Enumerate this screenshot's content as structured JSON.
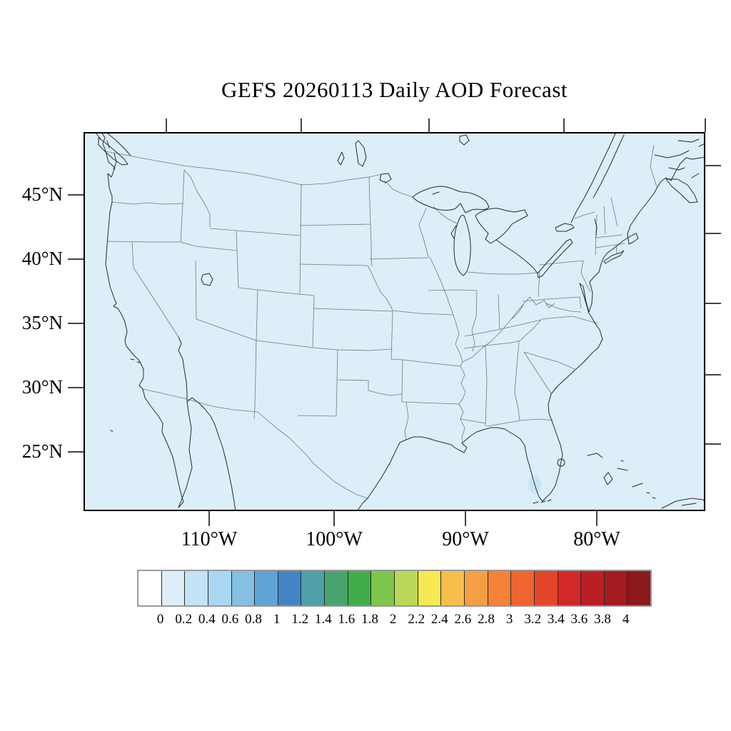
{
  "title": "GEFS 20260113 Daily AOD Forecast",
  "map": {
    "fill": "#DCEEF8",
    "aod_patch_fill": "#C7E5F5",
    "coast_color": "#2b2b2b",
    "state_border_color": "#6b7b7d",
    "frame_color": "#000000",
    "tick_color": "#444444"
  },
  "axes": {
    "lat": {
      "labels": [
        "45°N",
        "40°N",
        "35°N",
        "30°N",
        "25°N"
      ]
    },
    "lon": {
      "labels": [
        "110°W",
        "100°W",
        "90°W",
        "80°W"
      ]
    }
  },
  "colorbar": {
    "tick_labels": [
      "0",
      "0.2",
      "0.4",
      "0.6",
      "0.8",
      "1",
      "1.2",
      "1.4",
      "1.6",
      "1.8",
      "2",
      "2.2",
      "2.4",
      "2.6",
      "2.8",
      "3",
      "3.2",
      "3.4",
      "3.6",
      "3.8",
      "4"
    ],
    "colors": [
      "#FFFFFF",
      "#DEEEF8",
      "#C3E3F6",
      "#A9D7F1",
      "#85BFE2",
      "#5FA5D4",
      "#4484C4",
      "#4F9FA8",
      "#49A46F",
      "#3FAE4A",
      "#7EC54C",
      "#B9D857",
      "#F7E952",
      "#F6BE4C",
      "#F59F45",
      "#F5813A",
      "#EF6430",
      "#E2472A",
      "#D22828",
      "#BB1E23",
      "#A41B20",
      "#8C191B"
    ],
    "min": 0,
    "max": 4,
    "step": 0.2
  }
}
